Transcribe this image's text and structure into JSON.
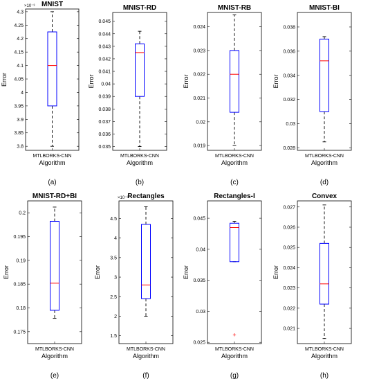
{
  "chart_data": [
    {
      "type": "box",
      "title": "MNIST",
      "caption": "(a)",
      "xlabel": "Algorithm",
      "ylabel": "Error",
      "category": "MTLBORKS-CNN",
      "y_exponent_label": "×10⁻³",
      "tick_labels": [
        "3.8",
        "3.85",
        "3.9",
        "3.95",
        "4",
        "4.05",
        "4.1",
        "4.15",
        "4.2",
        "4.25",
        "4.3"
      ],
      "ylim": [
        0.003785,
        0.00431
      ],
      "box": {
        "lower_whisker": 0.0038,
        "q1": 0.00395,
        "median": 0.0041,
        "q3": 0.004225,
        "upper_whisker": 0.0043
      },
      "outliers": []
    },
    {
      "type": "box",
      "title": "MNIST-RD",
      "caption": "(b)",
      "xlabel": "Algorithm",
      "ylabel": "Error",
      "category": "MTLBORKS-CNN",
      "tick_labels": [
        "0.035",
        "0.036",
        "0.037",
        "0.038",
        "0.039",
        "0.04",
        "0.041",
        "0.042",
        "0.043",
        "0.044",
        "0.045"
      ],
      "ylim": [
        0.0347,
        0.0457
      ],
      "box": {
        "lower_whisker": 0.035,
        "q1": 0.039,
        "median": 0.0425,
        "q3": 0.0432,
        "upper_whisker": 0.0442
      },
      "outliers": []
    },
    {
      "type": "box",
      "title": "MNIST-RB",
      "caption": "(c)",
      "xlabel": "Algorithm",
      "ylabel": "Error",
      "category": "MTLBORKS-CNN",
      "tick_labels": [
        "0.019",
        "0.02",
        "0.021",
        "0.022",
        "0.023",
        "0.024"
      ],
      "ylim": [
        0.0188,
        0.0246
      ],
      "box": {
        "lower_whisker": 0.019,
        "q1": 0.0204,
        "median": 0.022,
        "q3": 0.023,
        "upper_whisker": 0.0245
      },
      "outliers": []
    },
    {
      "type": "box",
      "title": "MNIST-BI",
      "caption": "(d)",
      "xlabel": "Algorithm",
      "ylabel": "Error",
      "category": "MTLBORKS-CNN",
      "tick_labels": [
        "0.028",
        "0.03",
        "0.032",
        "0.034",
        "0.036",
        "0.038"
      ],
      "ylim": [
        0.0278,
        0.0392
      ],
      "box": {
        "lower_whisker": 0.0285,
        "q1": 0.031,
        "median": 0.0352,
        "q3": 0.037,
        "upper_whisker": 0.0372
      },
      "outliers": []
    },
    {
      "type": "box",
      "title": "MNIST-RD+BI",
      "caption": "(e)",
      "xlabel": "Algorithm",
      "ylabel": "Error",
      "category": "MTLBORKS-CNN",
      "tick_labels": [
        "0.175",
        "0.18",
        "0.185",
        "0.19",
        "0.195",
        "0.2"
      ],
      "ylim": [
        0.1725,
        0.2025
      ],
      "box": {
        "lower_whisker": 0.1778,
        "q1": 0.1795,
        "median": 0.1852,
        "q3": 0.1982,
        "upper_whisker": 0.2012
      },
      "outliers": []
    },
    {
      "type": "box",
      "title": "Rectangles",
      "caption": "(f)",
      "xlabel": "Algorithm",
      "ylabel": "Error",
      "category": "MTLBORKS-CNN",
      "y_exponent_label": "×10⁻³",
      "tick_labels": [
        "1.5",
        "2",
        "2.5",
        "3",
        "3.5",
        "4",
        "4.5"
      ],
      "ylim": [
        0.0013,
        0.00495
      ],
      "box": {
        "lower_whisker": 0.002,
        "q1": 0.00245,
        "median": 0.0028,
        "q3": 0.00435,
        "upper_whisker": 0.0048
      },
      "outliers": []
    },
    {
      "type": "box",
      "title": "Rectangles-I",
      "caption": "(g)",
      "xlabel": "Algorithm",
      "ylabel": "Error",
      "category": "MTLBORKS-CNN",
      "tick_labels": [
        "0.025",
        "0.03",
        "0.035",
        "0.04",
        "0.045"
      ],
      "ylim": [
        0.0248,
        0.0478
      ],
      "box": {
        "lower_whisker": 0.038,
        "q1": 0.038,
        "median": 0.0435,
        "q3": 0.0442,
        "upper_whisker": 0.0445
      },
      "outliers": [
        0.0262
      ]
    },
    {
      "type": "box",
      "title": "Convex",
      "caption": "(h)",
      "xlabel": "Algorithm",
      "ylabel": "Error",
      "category": "MTLBORKS-CNN",
      "tick_labels": [
        "0.021",
        "0.022",
        "0.023",
        "0.024",
        "0.025",
        "0.026",
        "0.027"
      ],
      "ylim": [
        0.02025,
        0.0273
      ],
      "box": {
        "lower_whisker": 0.0205,
        "q1": 0.0222,
        "median": 0.0232,
        "q3": 0.0252,
        "upper_whisker": 0.0271
      },
      "outliers": []
    }
  ],
  "colors": {
    "box": "#0000ff",
    "median": "#ff0000",
    "whisker": "#000000",
    "outlier": "#ff0000",
    "axes": "#000000"
  }
}
